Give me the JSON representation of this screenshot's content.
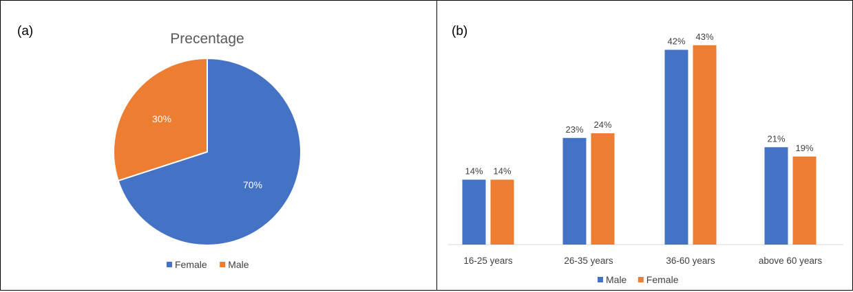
{
  "panels": [
    {
      "tag": "(a)"
    },
    {
      "tag": "(b)"
    }
  ],
  "colors": {
    "blue": "#4472C4",
    "orange": "#ED7D31"
  },
  "chart_data": [
    {
      "type": "pie",
      "title": "Precentage",
      "slices": [
        {
          "name": "Female",
          "value": 70,
          "label": "70%",
          "color": "#4472C4"
        },
        {
          "name": "Male",
          "value": 30,
          "label": "30%",
          "color": "#ED7D31"
        }
      ],
      "legend": [
        "Female",
        "Male"
      ],
      "legend_position": "bottom"
    },
    {
      "type": "bar",
      "title": "",
      "categories": [
        "16-25 years",
        "26-35 years",
        "36-60 years",
        "above 60 years"
      ],
      "series": [
        {
          "name": "Male",
          "values": [
            14,
            23,
            42,
            21
          ],
          "labels": [
            "14%",
            "23%",
            "42%",
            "21%"
          ],
          "color": "#4472C4"
        },
        {
          "name": "Female",
          "values": [
            14,
            24,
            43,
            19
          ],
          "labels": [
            "14%",
            "24%",
            "43%",
            "19%"
          ],
          "color": "#ED7D31"
        }
      ],
      "legend_position": "bottom",
      "grid": false
    }
  ]
}
